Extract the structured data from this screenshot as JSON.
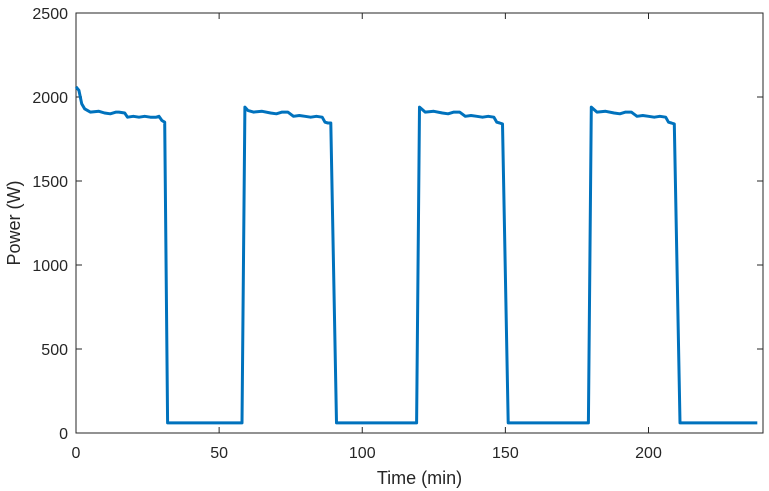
{
  "chart_data": {
    "type": "line",
    "title": "",
    "xlabel": "Time (min)",
    "ylabel": "Power (W)",
    "xlim": [
      0,
      240
    ],
    "ylim": [
      0,
      2500
    ],
    "xticks": [
      0,
      50,
      100,
      150,
      200
    ],
    "yticks": [
      0,
      500,
      1000,
      1500,
      2000,
      2500
    ],
    "grid": false,
    "legend": "none",
    "colors": {
      "line": "#0072BD",
      "axes": "#262626"
    },
    "series": [
      {
        "x": [
          0,
          1,
          2,
          3,
          5,
          8,
          10,
          12,
          14,
          15,
          17,
          18,
          20,
          22,
          24,
          26,
          28,
          29,
          30,
          31,
          32,
          57,
          58,
          59,
          60,
          62,
          65,
          68,
          70,
          72,
          74,
          76,
          78,
          80,
          82,
          84,
          86,
          87,
          88,
          89,
          91,
          118,
          119,
          120,
          121,
          122,
          125,
          128,
          130,
          132,
          134,
          136,
          138,
          140,
          142,
          144,
          146,
          147,
          148,
          149,
          151,
          178,
          179,
          180,
          181,
          182,
          185,
          188,
          190,
          192,
          194,
          196,
          198,
          200,
          202,
          204,
          206,
          207,
          208,
          209,
          211,
          238
        ],
        "y": [
          2060,
          2040,
          1960,
          1930,
          1910,
          1915,
          1905,
          1900,
          1910,
          1910,
          1905,
          1880,
          1885,
          1880,
          1885,
          1880,
          1880,
          1885,
          1860,
          1850,
          60,
          60,
          60,
          1940,
          1920,
          1910,
          1915,
          1905,
          1900,
          1910,
          1910,
          1885,
          1890,
          1885,
          1880,
          1885,
          1880,
          1850,
          1845,
          1845,
          60,
          60,
          60,
          1940,
          1925,
          1910,
          1915,
          1905,
          1900,
          1910,
          1910,
          1885,
          1890,
          1885,
          1880,
          1885,
          1880,
          1850,
          1845,
          1840,
          60,
          60,
          60,
          1940,
          1925,
          1910,
          1915,
          1905,
          1900,
          1910,
          1910,
          1885,
          1890,
          1885,
          1880,
          1885,
          1880,
          1850,
          1845,
          1840,
          60,
          60
        ]
      }
    ]
  }
}
